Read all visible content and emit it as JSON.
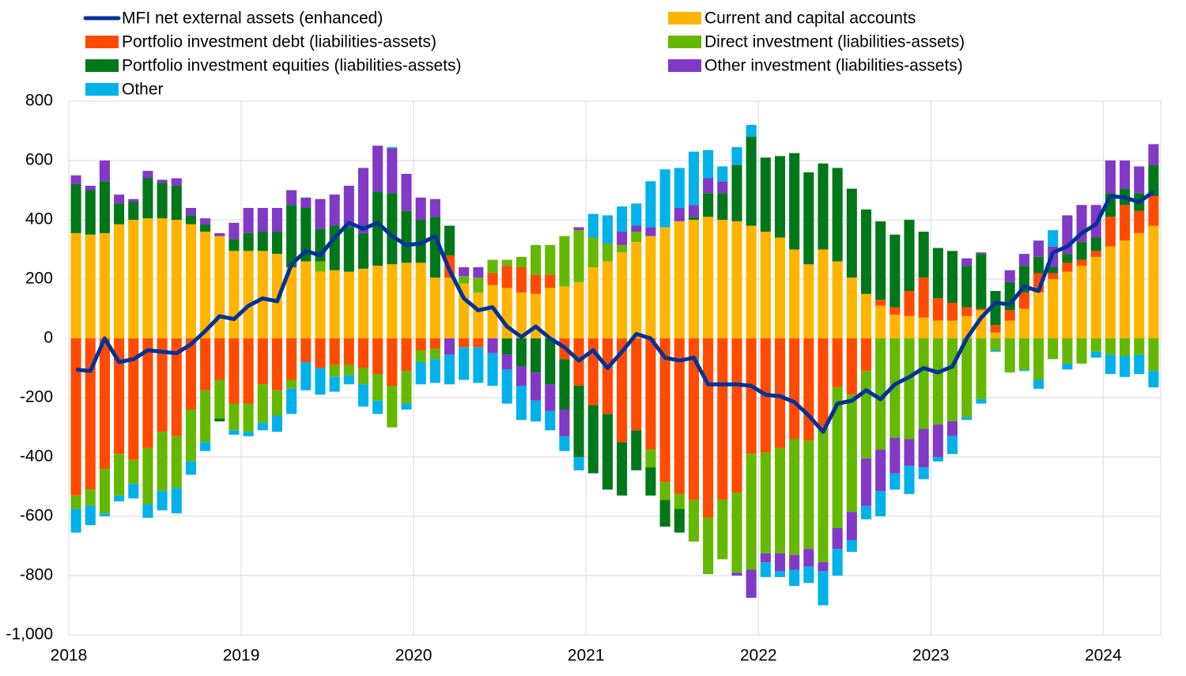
{
  "chart_data": {
    "type": "bar",
    "categories": [
      "2018",
      null,
      null,
      null,
      null,
      null,
      null,
      null,
      null,
      null,
      null,
      null,
      "2019",
      null,
      null,
      null,
      null,
      null,
      null,
      null,
      null,
      null,
      null,
      null,
      "2020",
      null,
      null,
      null,
      null,
      null,
      null,
      null,
      null,
      null,
      null,
      null,
      "2021",
      null,
      null,
      null,
      null,
      null,
      null,
      null,
      null,
      null,
      null,
      null,
      "2022",
      null,
      null,
      null,
      null,
      null,
      null,
      null,
      null,
      null,
      null,
      null,
      "2023",
      null,
      null,
      null,
      null,
      null,
      null,
      null,
      null,
      null,
      null,
      null,
      "2024",
      null,
      null,
      null
    ],
    "series": [
      {
        "name": "MFI net external assets (enhanced)",
        "type": "line",
        "color": "#003299",
        "values": [
          -105,
          -110,
          0,
          -80,
          -70,
          -40,
          -45,
          -50,
          -20,
          25,
          75,
          65,
          110,
          135,
          125,
          250,
          295,
          280,
          340,
          390,
          370,
          390,
          345,
          315,
          320,
          345,
          230,
          135,
          95,
          105,
          40,
          5,
          40,
          0,
          -30,
          -75,
          -40,
          -100,
          -45,
          15,
          0,
          -65,
          -75,
          -65,
          -155,
          -155,
          -155,
          -160,
          -190,
          -195,
          -215,
          -260,
          -315,
          -220,
          -210,
          -175,
          -205,
          -155,
          -130,
          -100,
          -115,
          -95,
          0,
          70,
          120,
          115,
          175,
          160,
          290,
          310,
          355,
          385,
          480,
          475,
          460,
          495
        ]
      },
      {
        "name": "Current and capital accounts",
        "color": "#ffb400",
        "values": [
          355,
          350,
          355,
          385,
          400,
          405,
          405,
          400,
          385,
          360,
          345,
          295,
          295,
          295,
          285,
          240,
          260,
          225,
          230,
          225,
          235,
          245,
          250,
          255,
          255,
          205,
          205,
          185,
          155,
          180,
          170,
          155,
          150,
          170,
          175,
          190,
          240,
          260,
          290,
          325,
          345,
          375,
          395,
          400,
          410,
          400,
          395,
          380,
          360,
          340,
          300,
          250,
          300,
          260,
          205,
          150,
          110,
          80,
          75,
          70,
          60,
          60,
          75,
          95,
          20,
          60,
          100,
          155,
          200,
          225,
          245,
          275,
          310,
          330,
          355,
          380
        ]
      },
      {
        "name": "Portfolio investment debt (liabilities-assets)",
        "color": "#ff4b00",
        "values": [
          -530,
          -510,
          -440,
          -390,
          -410,
          -370,
          -315,
          -330,
          -240,
          -175,
          -140,
          -220,
          -220,
          -155,
          -175,
          -140,
          -80,
          -100,
          -90,
          -90,
          -100,
          -120,
          -160,
          -110,
          -40,
          -35,
          75,
          -30,
          -30,
          40,
          75,
          85,
          65,
          45,
          -70,
          -160,
          -225,
          -255,
          -350,
          -310,
          -375,
          -485,
          -525,
          -545,
          -605,
          -545,
          -520,
          -390,
          -385,
          -370,
          -340,
          -345,
          -300,
          -165,
          -190,
          -110,
          20,
          25,
          85,
          135,
          75,
          60,
          30,
          5,
          25,
          35,
          55,
          65,
          20,
          30,
          20,
          20,
          100,
          120,
          75,
          100
        ]
      },
      {
        "name": "Direct investment (liabilities-assets)",
        "color": "#65b800",
        "values": [
          -45,
          -55,
          -150,
          -140,
          -80,
          -190,
          -200,
          -175,
          -175,
          -175,
          -130,
          -90,
          -95,
          -130,
          -85,
          -30,
          0,
          35,
          -40,
          -35,
          -55,
          -90,
          -140,
          -110,
          -40,
          -35,
          0,
          25,
          50,
          45,
          20,
          35,
          100,
          100,
          170,
          175,
          100,
          60,
          25,
          35,
          -60,
          -60,
          -50,
          -140,
          -190,
          -200,
          -270,
          -390,
          -340,
          -355,
          -390,
          -365,
          -455,
          -475,
          -395,
          -295,
          -375,
          -335,
          -340,
          -305,
          -290,
          -280,
          -265,
          -205,
          -40,
          -115,
          -105,
          -140,
          -70,
          -85,
          -85,
          -45,
          -55,
          -60,
          -55,
          -110
        ]
      },
      {
        "name": "Portfolio investment equities (liabilities-assets)",
        "color": "#00781a",
        "values": [
          165,
          150,
          175,
          70,
          60,
          135,
          120,
          115,
          30,
          25,
          -10,
          40,
          60,
          65,
          75,
          210,
          180,
          110,
          150,
          150,
          120,
          250,
          240,
          175,
          145,
          205,
          100,
          0,
          0,
          0,
          -55,
          -95,
          -115,
          -155,
          -170,
          -240,
          -230,
          -255,
          -180,
          -135,
          -95,
          -90,
          -80,
          10,
          80,
          90,
          190,
          300,
          250,
          275,
          325,
          310,
          290,
          315,
          300,
          285,
          265,
          245,
          240,
          155,
          170,
          175,
          140,
          185,
          115,
          95,
          90,
          55,
          20,
          30,
          60,
          45,
          80,
          55,
          60,
          105
        ]
      },
      {
        "name": "Other investment (liabilities-assets)",
        "color": "#8139c6",
        "values": [
          30,
          15,
          70,
          30,
          10,
          25,
          10,
          25,
          25,
          20,
          10,
          55,
          85,
          80,
          80,
          50,
          35,
          100,
          105,
          140,
          220,
          155,
          150,
          125,
          75,
          60,
          -55,
          30,
          35,
          -50,
          -50,
          -65,
          -95,
          -90,
          -90,
          10,
          0,
          0,
          45,
          20,
          30,
          0,
          45,
          40,
          50,
          40,
          -10,
          -95,
          -30,
          -60,
          -50,
          -60,
          -30,
          -70,
          -95,
          -160,
          -140,
          -120,
          -90,
          -130,
          -110,
          -50,
          25,
          5,
          0,
          40,
          40,
          55,
          70,
          130,
          125,
          110,
          110,
          95,
          90,
          70
        ]
      },
      {
        "name": "Other",
        "color": "#00b1ea",
        "values": [
          -80,
          -65,
          -10,
          -20,
          -50,
          -45,
          -65,
          -85,
          -45,
          -30,
          0,
          -15,
          -15,
          -25,
          -55,
          -85,
          -95,
          -90,
          -50,
          -30,
          -75,
          -45,
          5,
          -20,
          -75,
          -80,
          -100,
          -110,
          -120,
          -110,
          -115,
          -115,
          -70,
          -65,
          -50,
          -45,
          80,
          95,
          85,
          75,
          155,
          195,
          135,
          180,
          95,
          50,
          60,
          40,
          -50,
          -20,
          -55,
          -55,
          -115,
          -90,
          -40,
          -45,
          -85,
          -55,
          -95,
          -40,
          -15,
          -60,
          -10,
          -15,
          -5,
          0,
          -5,
          -30,
          55,
          -20,
          0,
          -20,
          -65,
          -70,
          -65,
          -55
        ]
      }
    ],
    "ylim": [
      -1000,
      800
    ],
    "yticks": [
      {
        "value": -1000,
        "label": "-1,000"
      },
      -800,
      -600,
      -400,
      -200,
      0,
      200,
      400,
      600,
      800
    ],
    "grid": true
  }
}
